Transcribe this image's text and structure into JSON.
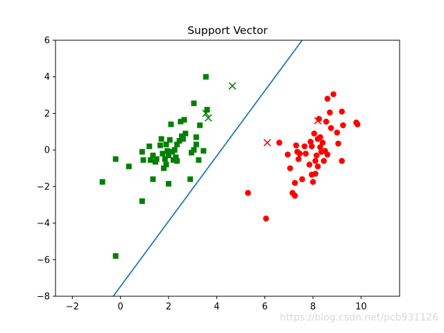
{
  "chart_data": {
    "type": "scatter",
    "title": "Support Vector",
    "xlabel": "",
    "ylabel": "",
    "xlim": [
      -2.7,
      11.6
    ],
    "ylim": [
      -8,
      6
    ],
    "x_ticks": [
      -2,
      0,
      2,
      4,
      6,
      8,
      10
    ],
    "y_ticks": [
      -8,
      -6,
      -4,
      -2,
      0,
      2,
      4,
      6
    ],
    "x_tick_labels": [
      "−2",
      "0",
      "2",
      "4",
      "6",
      "8",
      "10"
    ],
    "y_tick_labels": [
      "−8",
      "−6",
      "−4",
      "−2",
      "0",
      "2",
      "4",
      "6"
    ],
    "grid": false,
    "series": [
      {
        "marker": "square",
        "color": "#008000",
        "points": [
          [
            -0.75,
            -1.75
          ],
          [
            -0.2,
            -0.5
          ],
          [
            -0.2,
            -5.8
          ],
          [
            0.35,
            -0.9
          ],
          [
            0.9,
            -2.8
          ],
          [
            0.9,
            -0.1
          ],
          [
            0.95,
            -0.55
          ],
          [
            1.2,
            0.2
          ],
          [
            1.25,
            -0.55
          ],
          [
            1.35,
            -0.3
          ],
          [
            1.35,
            -1.6
          ],
          [
            1.45,
            -0.65
          ],
          [
            1.5,
            -0.5
          ],
          [
            1.65,
            0.25
          ],
          [
            1.7,
            0.6
          ],
          [
            1.75,
            -0.2
          ],
          [
            1.8,
            -1.0
          ],
          [
            1.85,
            -0.5
          ],
          [
            1.9,
            -0.8
          ],
          [
            1.9,
            0.3
          ],
          [
            1.95,
            -0.05
          ],
          [
            2.0,
            -1.85
          ],
          [
            2.0,
            -0.3
          ],
          [
            2.05,
            0.55
          ],
          [
            2.1,
            1.4
          ],
          [
            2.15,
            -0.1
          ],
          [
            2.2,
            -0.55
          ],
          [
            2.25,
            0.0
          ],
          [
            2.3,
            -0.4
          ],
          [
            2.35,
            -0.6
          ],
          [
            2.35,
            0.3
          ],
          [
            2.45,
            0.5
          ],
          [
            2.5,
            1.55
          ],
          [
            2.55,
            0.75
          ],
          [
            2.6,
            0.6
          ],
          [
            2.65,
            1.65
          ],
          [
            2.7,
            0.9
          ],
          [
            2.9,
            -1.6
          ],
          [
            2.95,
            -0.15
          ],
          [
            3.05,
            0.0
          ],
          [
            3.05,
            2.55
          ],
          [
            3.15,
            0.3
          ],
          [
            3.15,
            0.7
          ],
          [
            3.25,
            -0.55
          ],
          [
            3.3,
            1.35
          ],
          [
            3.45,
            -0.05
          ],
          [
            3.55,
            4.0
          ],
          [
            3.6,
            2.2
          ]
        ]
      },
      {
        "marker": "circle",
        "color": "#ff0000",
        "points": [
          [
            5.3,
            -2.35
          ],
          [
            6.05,
            -3.75
          ],
          [
            6.6,
            0.4
          ],
          [
            6.95,
            -0.25
          ],
          [
            7.05,
            -1.0
          ],
          [
            7.15,
            -2.35
          ],
          [
            7.25,
            -1.8
          ],
          [
            7.25,
            -2.5
          ],
          [
            7.3,
            0.25
          ],
          [
            7.35,
            -0.1
          ],
          [
            7.4,
            -0.5
          ],
          [
            7.45,
            -0.2
          ],
          [
            7.55,
            -1.6
          ],
          [
            7.65,
            0.2
          ],
          [
            7.7,
            -0.2
          ],
          [
            7.85,
            -0.8
          ],
          [
            7.9,
            0.45
          ],
          [
            7.95,
            0.2
          ],
          [
            8.0,
            -1.75
          ],
          [
            8.05,
            0.9
          ],
          [
            8.1,
            -0.6
          ],
          [
            8.1,
            -1.3
          ],
          [
            8.15,
            -0.3
          ],
          [
            8.2,
            -0.9
          ],
          [
            8.2,
            0.6
          ],
          [
            8.25,
            1.7
          ],
          [
            8.3,
            0.15
          ],
          [
            8.3,
            0.7
          ],
          [
            8.35,
            -0.1
          ],
          [
            8.4,
            0.4
          ],
          [
            8.45,
            -0.6
          ],
          [
            8.5,
            -0.05
          ],
          [
            8.55,
            1.55
          ],
          [
            8.6,
            -0.25
          ],
          [
            8.6,
            2.8
          ],
          [
            8.7,
            2.05
          ],
          [
            8.75,
            1.2
          ],
          [
            8.85,
            3.05
          ],
          [
            9.0,
            0.95
          ],
          [
            9.05,
            0.35
          ],
          [
            9.2,
            -0.6
          ],
          [
            9.2,
            2.1
          ],
          [
            9.25,
            1.35
          ],
          [
            9.8,
            1.5
          ],
          [
            9.85,
            1.4
          ],
          [
            7.95,
            -1.35
          ]
        ]
      },
      {
        "marker": "x",
        "color": "#008000",
        "points": [
          [
            3.55,
            2.0
          ],
          [
            3.65,
            1.75
          ],
          [
            4.65,
            3.5
          ]
        ]
      },
      {
        "marker": "x",
        "color": "#ff0000",
        "points": [
          [
            6.1,
            0.4
          ],
          [
            8.2,
            1.6
          ]
        ]
      }
    ],
    "decision_line": {
      "color": "#1f77b4",
      "points": [
        [
          -0.3,
          -8
        ],
        [
          7.55,
          6
        ]
      ]
    }
  },
  "watermark": "https://blog.csdn.net/pcb931126"
}
